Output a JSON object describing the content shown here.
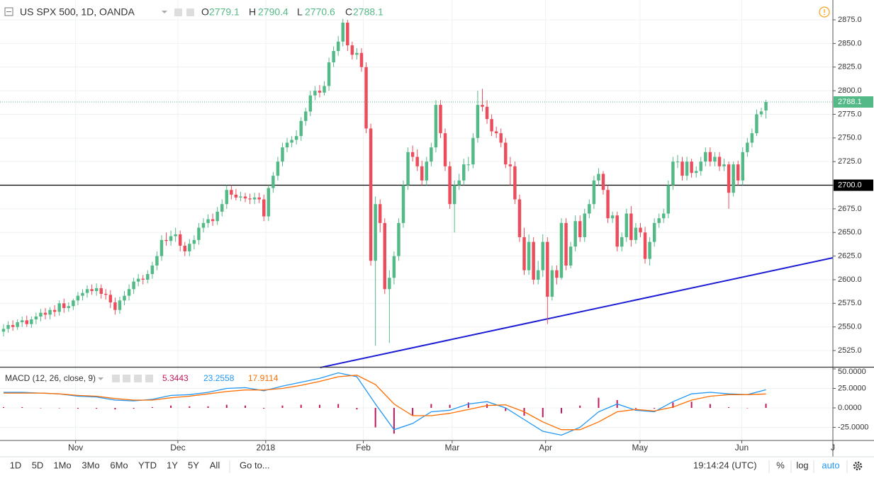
{
  "chart_data": [
    {
      "type": "candlestick",
      "title": "US SPX 500, 1D, OANDA",
      "ohlc_labels": [
        "O",
        "H",
        "L",
        "C"
      ],
      "open": [
        2545,
        2548,
        2552,
        2550,
        2555,
        2557,
        2553,
        2558,
        2561,
        2565,
        2563,
        2568,
        2566,
        2575,
        2570,
        2572,
        2578,
        2583,
        2586,
        2590,
        2588,
        2591,
        2585,
        2584,
        2576,
        2568,
        2578,
        2583,
        2590,
        2598,
        2601,
        2600,
        2606,
        2615,
        2625,
        2642,
        2641,
        2646,
        2648,
        2636,
        2630,
        2638,
        2642,
        2655,
        2660,
        2664,
        2662,
        2672,
        2680,
        2695,
        2690,
        2687,
        2688,
        2686,
        2685,
        2687,
        2685,
        2667,
        2697,
        2710,
        2725,
        2740,
        2745,
        2748,
        2752,
        2768,
        2778,
        2795,
        2800,
        2798,
        2805,
        2830,
        2842,
        2852,
        2872,
        2848,
        2838,
        2840,
        2825,
        2760,
        2620,
        2680,
        2660,
        2590,
        2602,
        2625,
        2660,
        2700,
        2735,
        2730,
        2720,
        2705,
        2725,
        2740,
        2785,
        2755,
        2720,
        2680,
        2700,
        2705,
        2722,
        2722,
        2750,
        2785,
        2783,
        2770,
        2757,
        2755,
        2745,
        2722,
        2720,
        2685,
        2645,
        2610,
        2640,
        2600,
        2610,
        2640,
        2582,
        2610,
        2602,
        2660,
        2615,
        2635,
        2662,
        2645,
        2670,
        2680,
        2705,
        2712,
        2695,
        2665,
        2668,
        2635,
        2645,
        2670,
        2642,
        2655,
        2650,
        2622,
        2640,
        2660,
        2665,
        2670,
        2700,
        2725,
        2725,
        2710,
        2725,
        2713,
        2715,
        2725,
        2735,
        2725,
        2730,
        2720,
        2722,
        2692,
        2722,
        2705,
        2735,
        2745,
        2755,
        2775,
        2779.1
      ],
      "high": [
        2553,
        2556,
        2557,
        2558,
        2561,
        2562,
        2561,
        2565,
        2569,
        2570,
        2571,
        2573,
        2578,
        2580,
        2576,
        2580,
        2587,
        2590,
        2594,
        2595,
        2596,
        2595,
        2590,
        2589,
        2581,
        2582,
        2588,
        2595,
        2602,
        2606,
        2605,
        2610,
        2619,
        2630,
        2647,
        2650,
        2652,
        2655,
        2652,
        2640,
        2643,
        2647,
        2660,
        2665,
        2669,
        2670,
        2677,
        2685,
        2700,
        2700,
        2696,
        2693,
        2692,
        2691,
        2692,
        2692,
        2690,
        2700,
        2714,
        2730,
        2745,
        2750,
        2752,
        2758,
        2772,
        2782,
        2800,
        2805,
        2806,
        2810,
        2835,
        2847,
        2858,
        2876,
        2875,
        2852,
        2845,
        2845,
        2830,
        2765,
        2688,
        2685,
        2665,
        2610,
        2630,
        2665,
        2705,
        2740,
        2742,
        2738,
        2726,
        2730,
        2745,
        2790,
        2790,
        2760,
        2725,
        2705,
        2712,
        2728,
        2730,
        2755,
        2800,
        2802,
        2790,
        2775,
        2762,
        2760,
        2750,
        2730,
        2725,
        2690,
        2655,
        2648,
        2645,
        2620,
        2648,
        2645,
        2615,
        2615,
        2665,
        2665,
        2640,
        2668,
        2668,
        2675,
        2685,
        2710,
        2718,
        2715,
        2700,
        2672,
        2672,
        2650,
        2675,
        2678,
        2660,
        2660,
        2656,
        2645,
        2665,
        2670,
        2675,
        2705,
        2730,
        2732,
        2730,
        2730,
        2728,
        2720,
        2730,
        2740,
        2740,
        2735,
        2735,
        2728,
        2725,
        2725,
        2726,
        2740,
        2750,
        2760,
        2780,
        2782,
        2790.4
      ],
      "low": [
        2540,
        2544,
        2546,
        2547,
        2550,
        2550,
        2549,
        2553,
        2556,
        2558,
        2558,
        2561,
        2562,
        2565,
        2566,
        2568,
        2573,
        2578,
        2581,
        2584,
        2583,
        2580,
        2579,
        2570,
        2563,
        2564,
        2573,
        2578,
        2585,
        2593,
        2595,
        2596,
        2601,
        2610,
        2620,
        2636,
        2636,
        2640,
        2630,
        2625,
        2625,
        2632,
        2637,
        2650,
        2655,
        2657,
        2658,
        2667,
        2675,
        2685,
        2684,
        2683,
        2682,
        2680,
        2680,
        2681,
        2662,
        2662,
        2692,
        2705,
        2720,
        2735,
        2740,
        2743,
        2747,
        2763,
        2773,
        2790,
        2793,
        2795,
        2800,
        2825,
        2837,
        2847,
        2842,
        2833,
        2833,
        2820,
        2755,
        2615,
        2530,
        2650,
        2585,
        2533,
        2595,
        2620,
        2655,
        2695,
        2725,
        2715,
        2700,
        2700,
        2720,
        2735,
        2750,
        2715,
        2675,
        2650,
        2695,
        2700,
        2715,
        2718,
        2745,
        2778,
        2765,
        2752,
        2750,
        2740,
        2718,
        2700,
        2680,
        2640,
        2605,
        2605,
        2595,
        2595,
        2603,
        2553,
        2578,
        2595,
        2600,
        2610,
        2612,
        2630,
        2640,
        2640,
        2665,
        2675,
        2700,
        2690,
        2660,
        2660,
        2630,
        2630,
        2640,
        2635,
        2638,
        2645,
        2617,
        2615,
        2635,
        2655,
        2660,
        2665,
        2695,
        2718,
        2705,
        2705,
        2708,
        2708,
        2710,
        2720,
        2720,
        2720,
        2715,
        2715,
        2675,
        2688,
        2700,
        2700,
        2730,
        2740,
        2752,
        2772,
        2770.6
      ],
      "close": [
        2548,
        2552,
        2550,
        2555,
        2557,
        2553,
        2558,
        2561,
        2565,
        2563,
        2568,
        2566,
        2575,
        2570,
        2572,
        2578,
        2583,
        2586,
        2590,
        2588,
        2591,
        2585,
        2584,
        2576,
        2568,
        2578,
        2583,
        2590,
        2598,
        2601,
        2600,
        2606,
        2615,
        2625,
        2642,
        2641,
        2646,
        2648,
        2636,
        2630,
        2638,
        2642,
        2655,
        2660,
        2664,
        2662,
        2672,
        2680,
        2695,
        2690,
        2687,
        2688,
        2686,
        2685,
        2687,
        2685,
        2667,
        2697,
        2710,
        2725,
        2740,
        2745,
        2748,
        2752,
        2768,
        2778,
        2795,
        2800,
        2798,
        2805,
        2830,
        2842,
        2852,
        2872,
        2848,
        2838,
        2840,
        2825,
        2760,
        2620,
        2680,
        2660,
        2590,
        2602,
        2625,
        2660,
        2700,
        2735,
        2730,
        2720,
        2705,
        2725,
        2740,
        2785,
        2755,
        2720,
        2680,
        2700,
        2705,
        2722,
        2722,
        2750,
        2785,
        2783,
        2770,
        2757,
        2755,
        2745,
        2722,
        2720,
        2685,
        2645,
        2610,
        2640,
        2600,
        2610,
        2640,
        2582,
        2610,
        2602,
        2660,
        2615,
        2635,
        2662,
        2645,
        2670,
        2680,
        2705,
        2712,
        2695,
        2665,
        2668,
        2635,
        2645,
        2670,
        2642,
        2655,
        2650,
        2622,
        2640,
        2660,
        2665,
        2670,
        2700,
        2725,
        2725,
        2710,
        2725,
        2713,
        2715,
        2725,
        2735,
        2725,
        2730,
        2720,
        2722,
        2692,
        2722,
        2705,
        2735,
        2745,
        2755,
        2775,
        2778,
        2788.1
      ],
      "up_color": "#53b987",
      "down_color": "#eb4d5c",
      "xlim": [
        -0.76,
        178.4
      ],
      "xticks": [
        {
          "value": 15.5,
          "label": "Nov"
        },
        {
          "value": 37.5,
          "label": "Dec"
        },
        {
          "value": 56.4,
          "label": "2018"
        },
        {
          "value": 77.4,
          "label": "Feb"
        },
        {
          "value": 96.5,
          "label": "Mar"
        },
        {
          "value": 116.6,
          "label": "Apr"
        },
        {
          "value": 136.9,
          "label": "May"
        },
        {
          "value": 158.8,
          "label": "Jun"
        },
        {
          "value": 178.4,
          "label": "J"
        }
      ],
      "ylim": [
        2507.8,
        2896
      ],
      "yticks": [
        {
          "value": 2525,
          "label": "2525.0"
        },
        {
          "value": 2550,
          "label": "2550.0"
        },
        {
          "value": 2575,
          "label": "2575.0"
        },
        {
          "value": 2600,
          "label": "2600.0"
        },
        {
          "value": 2625,
          "label": "2625.0"
        },
        {
          "value": 2650,
          "label": "2650.0"
        },
        {
          "value": 2675,
          "label": "2675.0"
        },
        {
          "value": 2700,
          "label": "2700.0"
        },
        {
          "value": 2725,
          "label": "2725.0"
        },
        {
          "value": 2750,
          "label": "2750.0"
        },
        {
          "value": 2775,
          "label": "2775.0"
        },
        {
          "value": 2800,
          "label": "2800.0"
        },
        {
          "value": 2825,
          "label": "2825.0"
        },
        {
          "value": 2850,
          "label": "2850.0"
        },
        {
          "value": 2875,
          "label": "2875.0"
        }
      ],
      "grid": true,
      "hline": {
        "value": 2700,
        "label": "2700.0",
        "color": "#000000"
      },
      "trendline": {
        "x": [
          68.1,
          178.4
        ],
        "y": [
          2507,
          2623.2
        ],
        "color": "#1c1cd6"
      }
    },
    {
      "type": "line",
      "title": "MACD (12, 26, close, 9)",
      "x": [
        0,
        4,
        8,
        12,
        16,
        20,
        24,
        28,
        32,
        36,
        40,
        44,
        48,
        52,
        56,
        60,
        64,
        68,
        72,
        76,
        80,
        84,
        88,
        92,
        96,
        100,
        104,
        108,
        112,
        116,
        120,
        124,
        128,
        132,
        136,
        140,
        144,
        148,
        152,
        156,
        160,
        164
      ],
      "series": [
        {
          "type": "bar",
          "color": "#c2185b",
          "values": [
            1,
            1,
            0,
            0,
            -1,
            -1,
            -2,
            -1,
            1,
            3,
            2,
            2,
            4,
            3,
            -1,
            3,
            4,
            4,
            5,
            -2,
            -25,
            -33,
            -10,
            5,
            4,
            7,
            5,
            -4,
            -10,
            -12,
            -7,
            3,
            13,
            10,
            -1,
            -1,
            7,
            8,
            5,
            1,
            0,
            5.3443
          ]
        },
        {
          "type": "line",
          "color": "#2196f3",
          "values": [
            20,
            20,
            19,
            18,
            15,
            14,
            10,
            9,
            11,
            16,
            17,
            20,
            25,
            26,
            22,
            28,
            33,
            38,
            45,
            40,
            5,
            -28,
            -20,
            -5,
            -3,
            5,
            8,
            0,
            -15,
            -30,
            -35,
            -25,
            -5,
            5,
            -3,
            -5,
            8,
            18,
            20,
            18,
            17,
            23.2558
          ]
        },
        {
          "type": "line",
          "color": "#ff6d00",
          "values": [
            19,
            19,
            19,
            18,
            16,
            15,
            12,
            10,
            10,
            13,
            15,
            18,
            21,
            23,
            23,
            25,
            29,
            34,
            40,
            42,
            30,
            5,
            -10,
            -10,
            -7,
            -2,
            3,
            4,
            -5,
            -18,
            -28,
            -28,
            -18,
            -5,
            -2,
            -4,
            1,
            10,
            15,
            17,
            17,
            17.9114
          ]
        }
      ],
      "ylim": [
        -41.8,
        51.8
      ],
      "yticks": [
        {
          "value": -25,
          "label": "-25.0000"
        },
        {
          "value": 0,
          "label": "0.0000"
        },
        {
          "value": 25,
          "label": "25.0000"
        },
        {
          "value": 50,
          "label": "50.0000"
        }
      ]
    }
  ],
  "toolbar": {
    "ranges": [
      "1D",
      "5D",
      "1Mo",
      "3Mo",
      "6Mo",
      "YTD",
      "1Y",
      "5Y",
      "All"
    ],
    "goto": "Go to...",
    "clock": "19:14:24 (UTC)",
    "options": [
      "%",
      "log",
      "auto"
    ]
  }
}
